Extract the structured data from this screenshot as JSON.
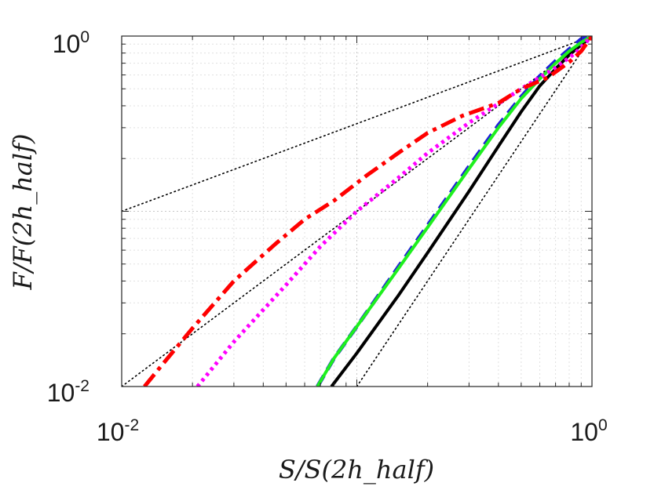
{
  "chart_data": {
    "type": "line",
    "xscale": "log",
    "yscale": "log",
    "xlim": [
      0.01,
      1
    ],
    "ylim": [
      0.01,
      1
    ],
    "grid": true,
    "xlabel": "S/S(2h_half)",
    "ylabel": "F/F(2h_half)",
    "x_ticks": [
      {
        "base": "10",
        "exp": "-2",
        "value": 0.01
      },
      {
        "base": "10",
        "exp": "0",
        "value": 1
      }
    ],
    "y_ticks": [
      {
        "base": "10",
        "exp": "-2",
        "value": 0.01
      },
      {
        "base": "10",
        "exp": "0",
        "value": 1
      }
    ],
    "reference_lines": [
      {
        "name": "slope-0.5",
        "slope": 0.5,
        "color": "#000000",
        "points": [
          [
            0.01,
            0.1
          ],
          [
            1,
            1
          ]
        ]
      },
      {
        "name": "slope-1",
        "slope": 1,
        "color": "#000000",
        "points": [
          [
            0.01,
            0.01
          ],
          [
            1,
            1
          ]
        ]
      },
      {
        "name": "slope-2",
        "slope": 2,
        "color": "#000000",
        "points": [
          [
            0.1,
            0.01
          ],
          [
            1,
            1
          ]
        ]
      }
    ],
    "series": [
      {
        "name": "black-solid",
        "color": "#000000",
        "style": "solid",
        "points": [
          [
            0.078,
            0.01
          ],
          [
            0.1,
            0.0155
          ],
          [
            0.15,
            0.033
          ],
          [
            0.2,
            0.058
          ],
          [
            0.3,
            0.13
          ],
          [
            0.4,
            0.235
          ],
          [
            0.5,
            0.37
          ],
          [
            0.6,
            0.52
          ],
          [
            0.7,
            0.65
          ],
          [
            0.8,
            0.78
          ],
          [
            0.9,
            0.89
          ],
          [
            1,
            1
          ]
        ]
      },
      {
        "name": "blue-dashed",
        "color": "#1f1fd8",
        "style": "dashed",
        "points": [
          [
            0.068,
            0.01
          ],
          [
            0.08,
            0.0145
          ],
          [
            0.1,
            0.022
          ],
          [
            0.15,
            0.048
          ],
          [
            0.2,
            0.083
          ],
          [
            0.3,
            0.18
          ],
          [
            0.4,
            0.31
          ],
          [
            0.5,
            0.45
          ],
          [
            0.6,
            0.59
          ],
          [
            0.7,
            0.72
          ],
          [
            0.8,
            0.84
          ],
          [
            0.9,
            0.96
          ],
          [
            0.95,
            1.0
          ],
          [
            1,
            1
          ]
        ]
      },
      {
        "name": "green-solid",
        "color": "#1ef01e",
        "style": "solid",
        "points": [
          [
            0.068,
            0.01
          ],
          [
            0.08,
            0.0145
          ],
          [
            0.1,
            0.022
          ],
          [
            0.15,
            0.047
          ],
          [
            0.2,
            0.081
          ],
          [
            0.3,
            0.175
          ],
          [
            0.4,
            0.3
          ],
          [
            0.5,
            0.44
          ],
          [
            0.6,
            0.57
          ],
          [
            0.7,
            0.7
          ],
          [
            0.8,
            0.82
          ],
          [
            0.9,
            0.92
          ],
          [
            1,
            1
          ]
        ]
      },
      {
        "name": "magenta-dotted",
        "color": "#ff00ff",
        "style": "dotted",
        "points": [
          [
            0.021,
            0.01
          ],
          [
            0.03,
            0.018
          ],
          [
            0.05,
            0.038
          ],
          [
            0.07,
            0.063
          ],
          [
            0.1,
            0.1
          ],
          [
            0.15,
            0.155
          ],
          [
            0.2,
            0.215
          ],
          [
            0.3,
            0.32
          ],
          [
            0.5,
            0.5
          ],
          [
            0.7,
            0.66
          ],
          [
            0.85,
            0.8
          ],
          [
            1,
            1
          ]
        ]
      },
      {
        "name": "red-dashdot",
        "color": "#ff0000",
        "style": "dashdot",
        "points": [
          [
            0.0125,
            0.01
          ],
          [
            0.015,
            0.0135
          ],
          [
            0.02,
            0.0215
          ],
          [
            0.03,
            0.04
          ],
          [
            0.045,
            0.065
          ],
          [
            0.06,
            0.09
          ],
          [
            0.08,
            0.115
          ],
          [
            0.11,
            0.16
          ],
          [
            0.15,
            0.215
          ],
          [
            0.2,
            0.28
          ],
          [
            0.28,
            0.35
          ],
          [
            0.4,
            0.415
          ],
          [
            0.5,
            0.5
          ],
          [
            0.65,
            0.58
          ],
          [
            0.8,
            0.71
          ],
          [
            0.9,
            0.82
          ],
          [
            1,
            1
          ]
        ]
      }
    ]
  }
}
